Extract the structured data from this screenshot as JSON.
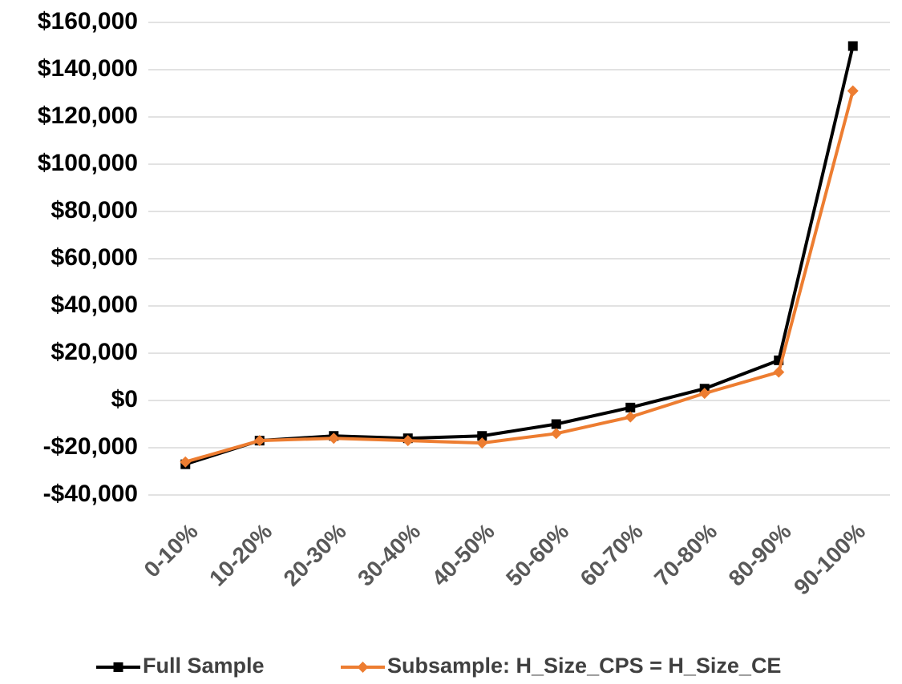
{
  "chart_data": {
    "type": "line",
    "categories": [
      "0-10%",
      "10-20%",
      "20-30%",
      "30-40%",
      "40-50%",
      "50-60%",
      "60-70%",
      "70-80%",
      "80-90%",
      "90-100%"
    ],
    "series": [
      {
        "name": "Full Sample",
        "color": "#000000",
        "marker": "square",
        "values": [
          -27000,
          -17000,
          -15000,
          -16000,
          -15000,
          -10000,
          -3000,
          5000,
          17000,
          150000
        ]
      },
      {
        "name": "Subsample: H_Size_CPS = H_Size_CE",
        "color": "#ed7d31",
        "marker": "diamond",
        "values": [
          -26000,
          -17000,
          -16000,
          -17000,
          -18000,
          -14000,
          -7000,
          3000,
          12000,
          131000
        ]
      }
    ],
    "ylim": [
      -40000,
      160000
    ],
    "yticks": [
      {
        "value": -40000,
        "label": "-$40,000"
      },
      {
        "value": -20000,
        "label": "-$20,000"
      },
      {
        "value": 0,
        "label": "$0"
      },
      {
        "value": 20000,
        "label": "$20,000"
      },
      {
        "value": 40000,
        "label": "$40,000"
      },
      {
        "value": 60000,
        "label": "$60,000"
      },
      {
        "value": 80000,
        "label": "$80,000"
      },
      {
        "value": 100000,
        "label": "$100,000"
      },
      {
        "value": 120000,
        "label": "$120,000"
      },
      {
        "value": 140000,
        "label": "$140,000"
      },
      {
        "value": 160000,
        "label": "$160,000"
      }
    ],
    "grid": true,
    "legend": "bottom"
  }
}
